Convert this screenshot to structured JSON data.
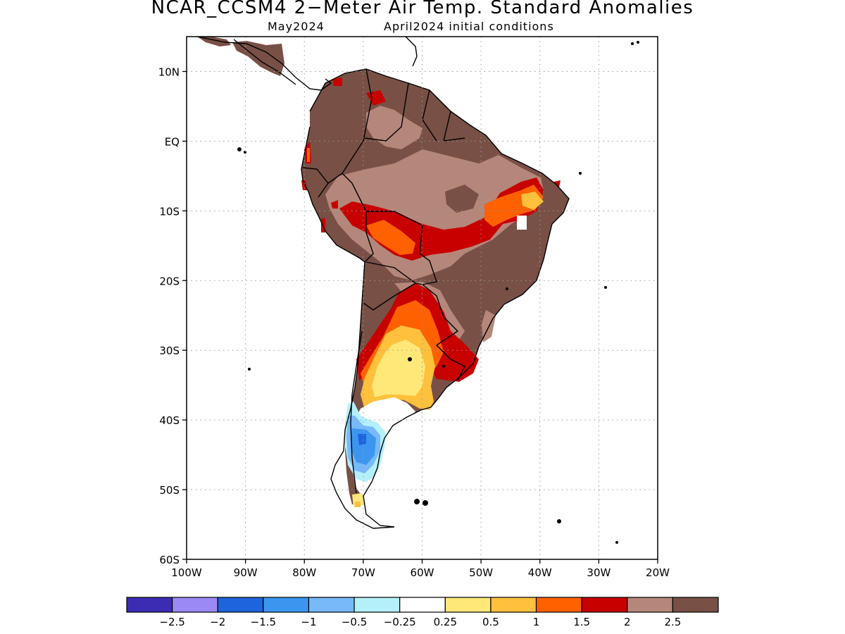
{
  "title": "NCAR_CCSM4 2−Meter Air Temp. Standard Anomalies",
  "subtitle_left": "May2024",
  "subtitle_right": "April2024 initial conditions",
  "map": {
    "lon_range": [
      -100,
      -20
    ],
    "lat_range": [
      -60,
      15
    ],
    "lat_ticks": [
      {
        "value": 10,
        "label": "10N"
      },
      {
        "value": 0,
        "label": "EQ"
      },
      {
        "value": -10,
        "label": "10S"
      },
      {
        "value": -20,
        "label": "20S"
      },
      {
        "value": -30,
        "label": "30S"
      },
      {
        "value": -40,
        "label": "40S"
      },
      {
        "value": -50,
        "label": "50S"
      },
      {
        "value": -60,
        "label": "60S"
      }
    ],
    "lon_ticks": [
      {
        "value": -100,
        "label": "100W"
      },
      {
        "value": -90,
        "label": "90W"
      },
      {
        "value": -80,
        "label": "80W"
      },
      {
        "value": -70,
        "label": "70W"
      },
      {
        "value": -60,
        "label": "60W"
      },
      {
        "value": -50,
        "label": "50W"
      },
      {
        "value": -40,
        "label": "40W"
      },
      {
        "value": -30,
        "label": "30W"
      },
      {
        "value": -20,
        "label": "20W"
      }
    ],
    "grid": "dotted"
  },
  "colorbar": {
    "colors": [
      "#3c2cb4",
      "#9b89f5",
      "#1e64dc",
      "#3c96f0",
      "#78b9fa",
      "#b4f0fa",
      "#ffffff",
      "#ffe878",
      "#ffc03c",
      "#ff6000",
      "#c80000",
      "#b4877a",
      "#785046"
    ],
    "labels": [
      "−2.5",
      "−2",
      "−1.5",
      "−1",
      "−0.5",
      "−0.25",
      "0.25",
      "0.5",
      "1",
      "1.5",
      "2",
      "2.5"
    ]
  }
}
